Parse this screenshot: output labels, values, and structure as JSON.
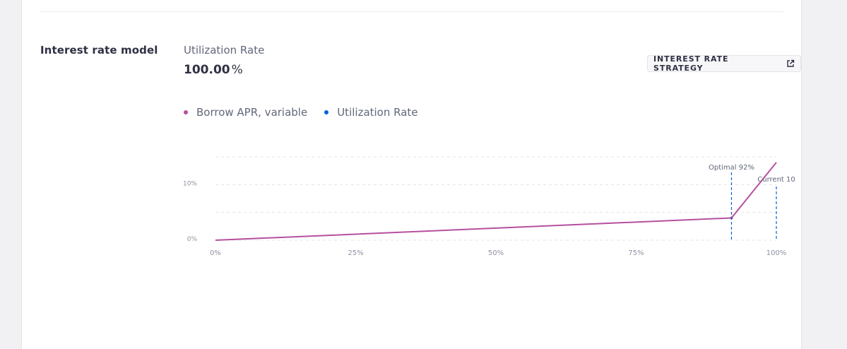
{
  "section": {
    "title": "Interest rate model"
  },
  "utilization": {
    "label": "Utilization Rate",
    "value": "100.00",
    "unit": "%"
  },
  "strategy_button": {
    "label": "INTEREST RATE STRATEGY",
    "icon": "external-link-icon"
  },
  "legend": [
    {
      "label": "Borrow APR, variable",
      "color": "#b6509e"
    },
    {
      "label": "Utilization Rate",
      "color": "#0062d2"
    }
  ],
  "chart_data": {
    "type": "line",
    "x_ticks": [
      "0%",
      "25%",
      "50%",
      "75%",
      "100%"
    ],
    "y_ticks": [
      "0%",
      "10%"
    ],
    "xlim": [
      0,
      100
    ],
    "ylim": [
      0,
      15
    ],
    "series": [
      {
        "name": "Borrow APR, variable",
        "color": "#b6509e",
        "points": [
          [
            0,
            0
          ],
          [
            92,
            4
          ],
          [
            100,
            14
          ]
        ]
      }
    ],
    "annotations": [
      {
        "label": "Optimal 92%",
        "x": 92
      },
      {
        "label": "Current 10",
        "x": 100
      }
    ],
    "grid": true
  }
}
